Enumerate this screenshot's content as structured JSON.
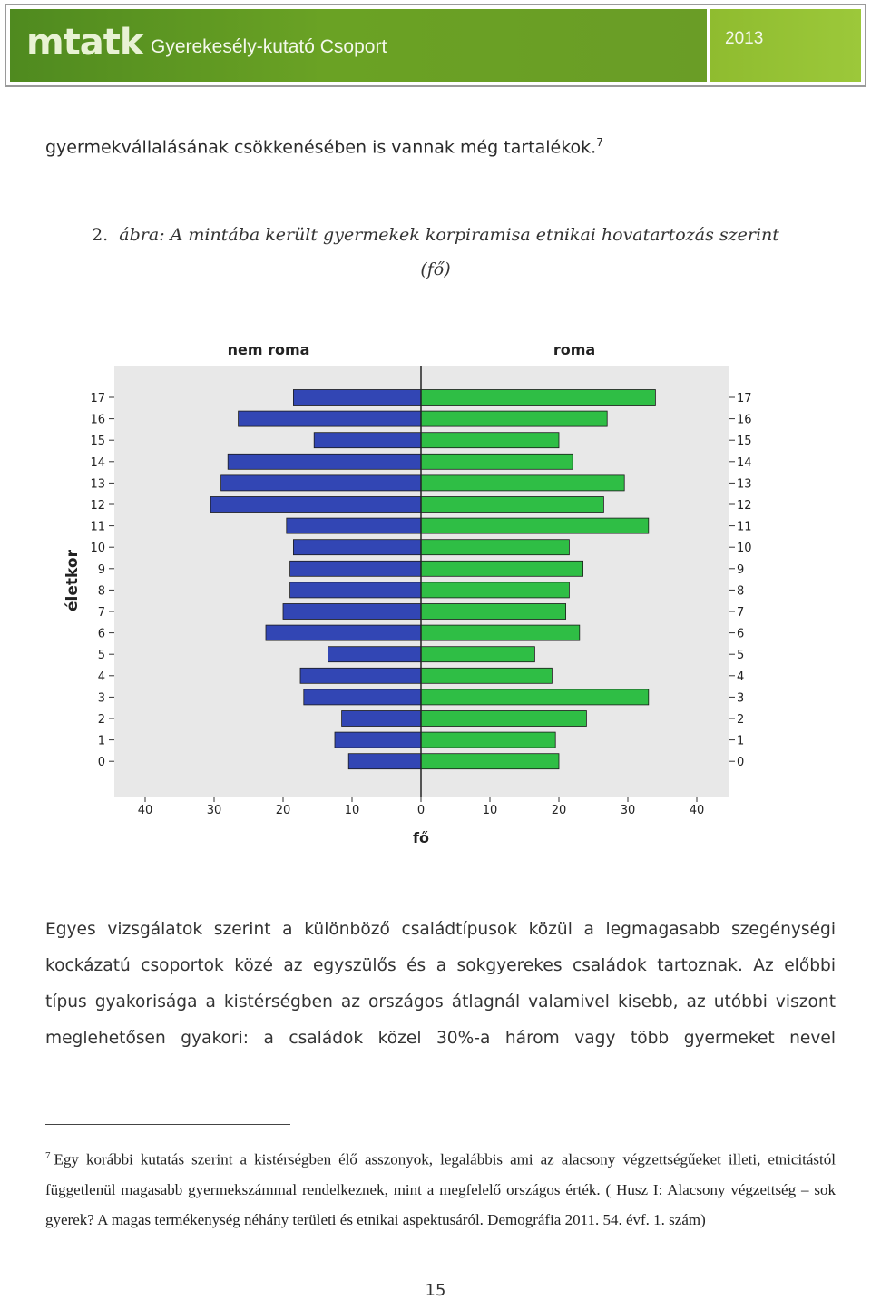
{
  "header": {
    "logo": "mtatk",
    "group": "Gyerekesély-kutató Csoport",
    "year": "2013",
    "colors": {
      "banner": "#5f9920",
      "year_box": "#96c436"
    }
  },
  "intro_line": "gyermekvállalásának csökkenésében is vannak még tartalékok.",
  "intro_footnote_ref": "7",
  "figure": {
    "number": "2.",
    "caption_line1": "ábra: A mintába került gyermekek korpiramisa etnikai hovatartozás szerint",
    "caption_line2": "(fő)"
  },
  "chart_data": {
    "type": "bar",
    "orientation": "horizontal population pyramid",
    "categories": [
      "17",
      "16",
      "15",
      "14",
      "13",
      "12",
      "11",
      "10",
      "9",
      "8",
      "7",
      "6",
      "5",
      "4",
      "3",
      "2",
      "1",
      "0"
    ],
    "series": [
      {
        "name": "nem roma",
        "color": "#3246b4",
        "side": "left",
        "values": [
          18.5,
          26.5,
          15.5,
          28,
          29,
          30.5,
          19.5,
          18.5,
          19,
          19,
          20,
          22.5,
          13.5,
          17.5,
          17,
          11.5,
          12.5,
          10.5
        ]
      },
      {
        "name": "roma",
        "color": "#2fbe45",
        "side": "right",
        "values": [
          34,
          27,
          20,
          22,
          29.5,
          26.5,
          33,
          21.5,
          23.5,
          21.5,
          21,
          23,
          16.5,
          19,
          33,
          24,
          19.5,
          20
        ]
      }
    ],
    "xlabel": "fő",
    "ylabel": "életkor",
    "xticks": [
      "40",
      "30",
      "20",
      "10",
      "0",
      "10",
      "20",
      "30",
      "40"
    ],
    "xlim": [
      -40,
      40
    ],
    "grid": false,
    "plot_background": "#e8e8e8"
  },
  "body_paragraph": [
    "Egyes vizsgálatok szerint a különböző családtípusok közül a legmagasabb szegénységi",
    "kockázatú csoportok közé az egyszülős és a sokgyerekes családok tartoznak. Az előbbi",
    "típus gyakorisága a kistérségben az országos átlagnál valamivel kisebb, az utóbbi viszont",
    "meglehetősen gyakori: a családok közel 30%-a három vagy több gyermeket nevel"
  ],
  "footnote": {
    "marker": "7",
    "text": "Egy korábbi kutatás szerint a kistérségben élő asszonyok, legalábbis ami az alacsony végzettségűeket illeti, etnicitástól függetlenül magasabb gyermekszámmal rendelkeznek, mint a megfelelő országos érték. ( Husz I: Alacsony végzettség – sok gyerek? A magas termékenység néhány területi és etnikai aspektusáról. Demográfia 2011. 54. évf. 1. szám)"
  },
  "page_number": "15"
}
